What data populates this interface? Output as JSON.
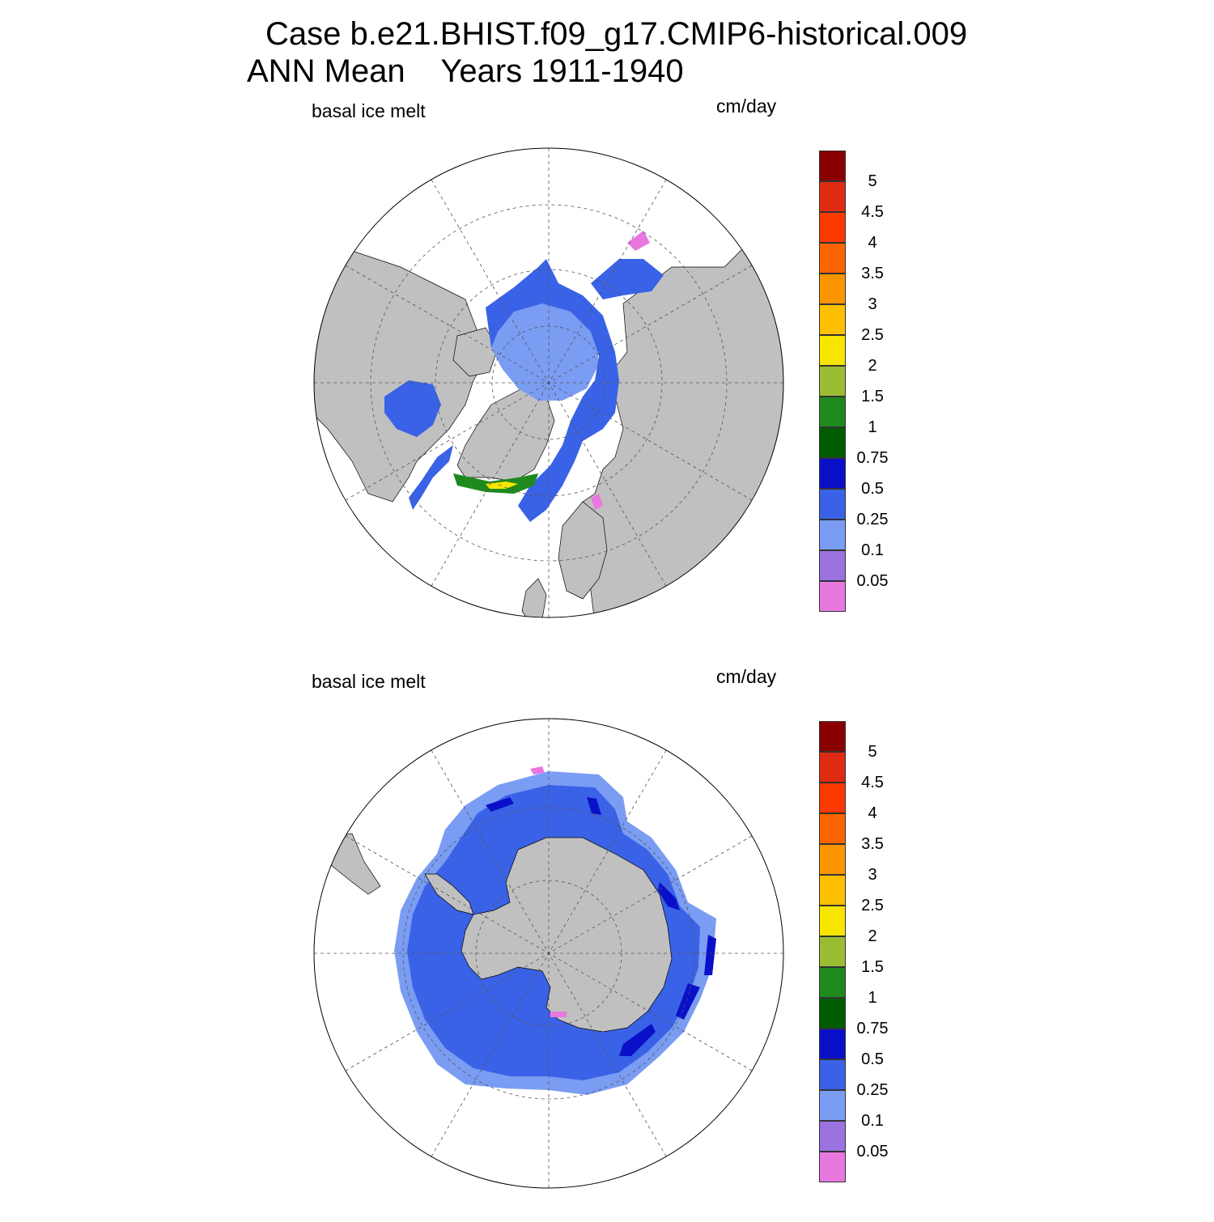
{
  "header": {
    "line1": "Case b.e21.BHIST.f09_g17.CMIP6-historical.009",
    "line2": "ANN Mean    Years 1911-1940"
  },
  "panels": [
    {
      "id": "north",
      "hemisphere": "Northern (Arctic)",
      "variable_label": "basal ice melt",
      "units_label": "cm/day"
    },
    {
      "id": "south",
      "hemisphere": "Southern (Antarctic)",
      "variable_label": "basal ice melt",
      "units_label": "cm/day"
    }
  ],
  "colorbar": {
    "levels": [
      "0.05",
      "0.1",
      "0.25",
      "0.5",
      "0.75",
      "1",
      "1.5",
      "2",
      "2.5",
      "3",
      "3.5",
      "4",
      "4.5",
      "5"
    ],
    "colors": [
      "#e877e0",
      "#9b72e0",
      "#7a9cf2",
      "#3a62e6",
      "#0a10c8",
      "#005c00",
      "#1e8a1e",
      "#9bbd33",
      "#f9e600",
      "#fcc000",
      "#fc9600",
      "#fc6400",
      "#fc3a00",
      "#e02a12",
      "#8a0000"
    ]
  },
  "colors": {
    "land": "#c0c0c0",
    "ocean": "#ffffff",
    "grid": "#555555"
  }
}
